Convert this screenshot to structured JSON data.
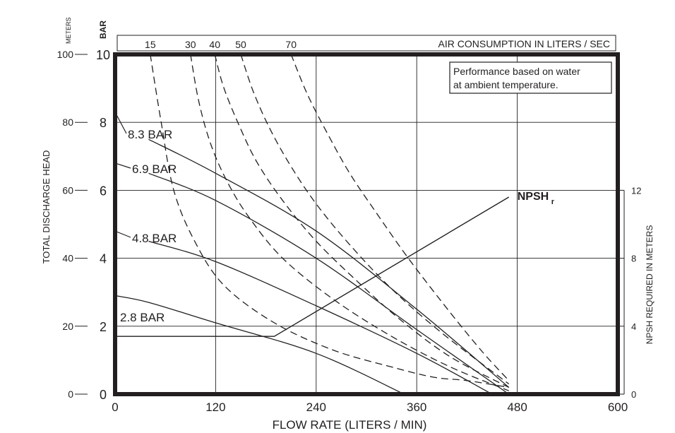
{
  "chart_data": {
    "type": "line",
    "xlabel": "FLOW RATE (LITERS / MIN)",
    "xlim": [
      0,
      600
    ],
    "x_ticks": [
      "0",
      "120",
      "240",
      "360",
      "480",
      "600"
    ],
    "ylabel_left": "TOTAL DISCHARGE HEAD",
    "unit_meters": "METERS",
    "unit_bar": "BAR",
    "ylim_meters": [
      0,
      100
    ],
    "meters_ticks": [
      "0",
      "20",
      "40",
      "60",
      "80",
      "100"
    ],
    "bar_ticks": [
      "0",
      "2",
      "4",
      "6",
      "8",
      "10"
    ],
    "ylabel_right": "NPSH REQUIRED IN METERS",
    "npsh_ticks": [
      "0",
      "4",
      "8",
      "12"
    ],
    "ylim_npsh": [
      0,
      20
    ],
    "air_header": "AIR CONSUMPTION IN LITERS / SEC",
    "air_ticks": [
      "15",
      "30",
      "40",
      "50",
      "70"
    ],
    "note_line1": "Performance based on water",
    "note_line2": "at ambient temperature.",
    "grid": true,
    "series": [
      {
        "name": "8.3 BAR",
        "kind": "pressure",
        "x": [
          40,
          120,
          240,
          360,
          470
        ],
        "y": [
          75,
          65,
          48,
          25,
          2
        ]
      },
      {
        "name": "6.9 BAR",
        "kind": "pressure",
        "x": [
          40,
          120,
          240,
          360,
          470
        ],
        "y": [
          65,
          57,
          40,
          19,
          0
        ]
      },
      {
        "name": "4.8 BAR",
        "kind": "pressure",
        "x": [
          40,
          120,
          240,
          360,
          450
        ],
        "y": [
          45,
          39,
          26,
          12,
          0
        ]
      },
      {
        "name": "2.8 BAR",
        "kind": "pressure",
        "x": [
          0,
          40,
          120,
          240,
          345
        ],
        "y": [
          29,
          27,
          21,
          12,
          0
        ]
      }
    ],
    "air_curves": [
      {
        "name": "15",
        "x": [
          42,
          55,
          70,
          95,
          130,
          190,
          260,
          330,
          380,
          420,
          470
        ],
        "y": [
          100,
          80,
          60,
          45,
          32,
          21,
          13,
          8,
          5,
          4,
          2
        ]
      },
      {
        "name": "30",
        "x": [
          90,
          100,
          115,
          135,
          160,
          200,
          260,
          330,
          400,
          470
        ],
        "y": [
          100,
          86,
          73,
          62,
          52,
          40,
          28,
          17,
          8,
          1
        ]
      },
      {
        "name": "40",
        "x": [
          119,
          130,
          150,
          170,
          200,
          240,
          290,
          340,
          400,
          470
        ],
        "y": [
          100,
          90,
          78,
          68,
          57,
          45,
          33,
          22,
          11,
          2
        ]
      },
      {
        "name": "50",
        "x": [
          150,
          165,
          185,
          210,
          240,
          280,
          330,
          390,
          470
        ],
        "y": [
          100,
          89,
          78,
          67,
          56,
          44,
          31,
          18,
          3
        ]
      },
      {
        "name": "70",
        "x": [
          210,
          230,
          255,
          280,
          310,
          350,
          400,
          440,
          470
        ],
        "y": [
          100,
          88,
          76,
          65,
          54,
          40,
          24,
          12,
          4
        ]
      }
    ],
    "npsh": {
      "name": "NPSH",
      "subscript": "r",
      "x": [
        0,
        190,
        470
      ],
      "y": [
        3.4,
        3.4,
        11.6
      ]
    }
  }
}
